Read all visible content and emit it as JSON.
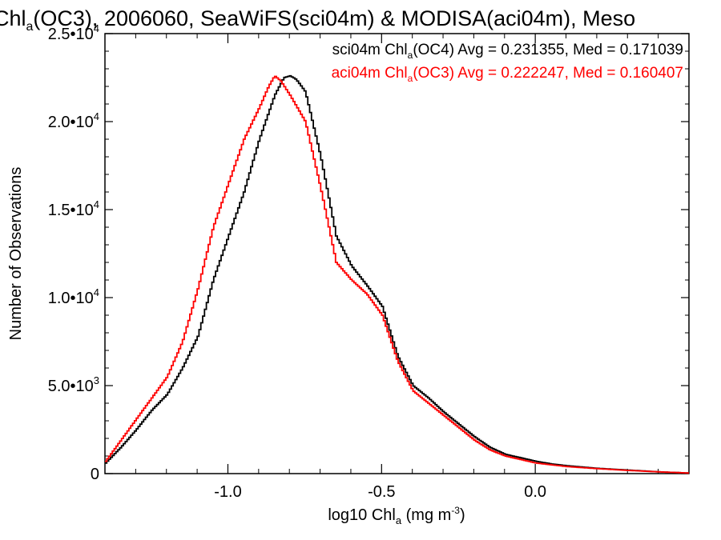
{
  "chart_data": {
    "type": "line",
    "title": {
      "main": "Chl",
      "sub": "a",
      "rest": "(OC3), 2006060, SeaWiFS(sci04m) & MODISA(aci04m), Meso"
    },
    "xlabel": {
      "main": "log10 Chl",
      "sub": "a",
      "rest": " (mg m",
      "sup": "-3",
      "end": ")"
    },
    "ylabel": "Number of Observations",
    "xlim": [
      -1.4,
      0.5
    ],
    "ylim": [
      0,
      25000
    ],
    "x_ticks": [
      {
        "value": -1.0,
        "label": "-1.0"
      },
      {
        "value": -0.5,
        "label": "-0.5"
      },
      {
        "value": 0.0,
        "label": "0.0"
      }
    ],
    "y_ticks": [
      {
        "value": 0,
        "mant": "0",
        "exp": ""
      },
      {
        "value": 5000,
        "mant": "5.0•10",
        "exp": "3"
      },
      {
        "value": 10000,
        "mant": "1.0•10",
        "exp": "4"
      },
      {
        "value": 15000,
        "mant": "1.5•10",
        "exp": "4"
      },
      {
        "value": 20000,
        "mant": "2.0•10",
        "exp": "4"
      },
      {
        "value": 25000,
        "mant": "2.5•10",
        "exp": "4"
      }
    ],
    "series": [
      {
        "name": "sci04m",
        "legend": {
          "pre": "sci04m Chl",
          "sub": "a",
          "post": "(OC4) Avg = 0.231355, Med = 0.171039"
        },
        "color": "#000000",
        "x": [
          -1.4,
          -1.35,
          -1.3,
          -1.25,
          -1.2,
          -1.15,
          -1.1,
          -1.05,
          -1.0,
          -0.95,
          -0.9,
          -0.85,
          -0.82,
          -0.8,
          -0.78,
          -0.75,
          -0.7,
          -0.65,
          -0.6,
          -0.55,
          -0.5,
          -0.45,
          -0.4,
          -0.35,
          -0.3,
          -0.25,
          -0.2,
          -0.15,
          -0.1,
          -0.05,
          0.0,
          0.05,
          0.1,
          0.2,
          0.3,
          0.4,
          0.5
        ],
        "values": [
          600,
          1500,
          2500,
          3600,
          4500,
          6000,
          7800,
          11000,
          13500,
          16000,
          19000,
          21500,
          22500,
          22600,
          22400,
          21700,
          18000,
          13500,
          11800,
          10700,
          9500,
          6700,
          5000,
          4300,
          3500,
          2800,
          2100,
          1500,
          1100,
          900,
          700,
          550,
          450,
          300,
          200,
          100,
          30
        ]
      },
      {
        "name": "aci04m",
        "legend": {
          "pre": "aci04m Chl",
          "sub": "a",
          "post": "(OC3) Avg = 0.222247, Med = 0.160407"
        },
        "color": "#ff0000",
        "x": [
          -1.4,
          -1.35,
          -1.3,
          -1.25,
          -1.2,
          -1.15,
          -1.1,
          -1.05,
          -1.0,
          -0.95,
          -0.9,
          -0.87,
          -0.85,
          -0.83,
          -0.8,
          -0.75,
          -0.7,
          -0.65,
          -0.6,
          -0.55,
          -0.5,
          -0.45,
          -0.4,
          -0.35,
          -0.3,
          -0.25,
          -0.2,
          -0.15,
          -0.1,
          -0.05,
          0.0,
          0.05,
          0.1,
          0.2,
          0.3,
          0.4,
          0.5
        ],
        "values": [
          700,
          1900,
          3100,
          4300,
          5500,
          7500,
          10500,
          14000,
          16500,
          19000,
          20800,
          22000,
          22600,
          22300,
          21500,
          20000,
          16200,
          12000,
          11000,
          10200,
          9000,
          6400,
          4700,
          4000,
          3300,
          2600,
          1900,
          1350,
          1000,
          800,
          600,
          500,
          400,
          280,
          180,
          100,
          30
        ]
      }
    ],
    "legend_position": "top-right",
    "grid": false
  }
}
